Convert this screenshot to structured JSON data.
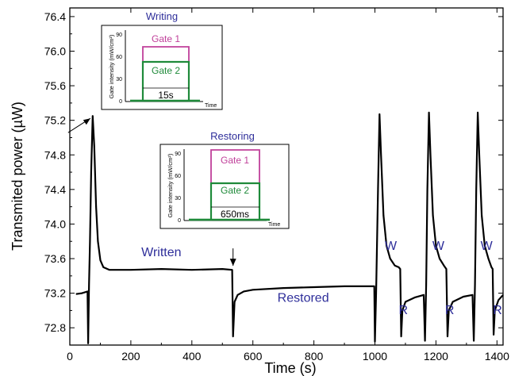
{
  "chart_data": {
    "type": "line",
    "xlabel": "Time (s)",
    "ylabel": "Transmited power (µW)",
    "xlim": [
      0,
      1420
    ],
    "ylim": [
      72.6,
      76.5
    ],
    "x_ticks": [
      "0",
      "200",
      "400",
      "600",
      "800",
      "1000",
      "1200",
      "1400"
    ],
    "y_ticks": [
      "72.8",
      "73.2",
      "73.6",
      "74.0",
      "74.4",
      "74.8",
      "75.2",
      "75.6",
      "76.0",
      "76.4"
    ],
    "series": [
      {
        "color": "#000000",
        "points": [
          [
            20,
            73.19
          ],
          [
            40,
            73.2
          ],
          [
            58,
            73.22
          ],
          [
            60,
            72.62
          ],
          [
            63,
            73.3
          ],
          [
            66,
            73.8
          ],
          [
            70,
            74.6
          ],
          [
            75,
            75.25
          ],
          [
            80,
            74.9
          ],
          [
            86,
            74.2
          ],
          [
            92,
            73.8
          ],
          [
            100,
            73.58
          ],
          [
            110,
            73.5
          ],
          [
            130,
            73.47
          ],
          [
            200,
            73.47
          ],
          [
            300,
            73.48
          ],
          [
            400,
            73.47
          ],
          [
            500,
            73.48
          ],
          [
            532,
            73.47
          ],
          [
            535,
            72.7
          ],
          [
            540,
            73.1
          ],
          [
            550,
            73.18
          ],
          [
            570,
            73.22
          ],
          [
            600,
            73.24
          ],
          [
            700,
            73.26
          ],
          [
            800,
            73.27
          ],
          [
            900,
            73.28
          ],
          [
            998,
            73.28
          ],
          [
            1000,
            72.64
          ],
          [
            1004,
            73.2
          ],
          [
            1010,
            74.4
          ],
          [
            1015,
            75.27
          ],
          [
            1020,
            74.8
          ],
          [
            1028,
            74.1
          ],
          [
            1038,
            73.75
          ],
          [
            1050,
            73.6
          ],
          [
            1065,
            73.52
          ],
          [
            1078,
            73.5
          ],
          [
            1083,
            73.48
          ],
          [
            1086,
            72.7
          ],
          [
            1090,
            73.0
          ],
          [
            1100,
            73.1
          ],
          [
            1130,
            73.15
          ],
          [
            1160,
            73.18
          ],
          [
            1164,
            72.65
          ],
          [
            1168,
            73.3
          ],
          [
            1172,
            74.4
          ],
          [
            1177,
            75.29
          ],
          [
            1182,
            74.8
          ],
          [
            1190,
            74.1
          ],
          [
            1200,
            73.75
          ],
          [
            1212,
            73.6
          ],
          [
            1226,
            73.52
          ],
          [
            1234,
            73.48
          ],
          [
            1238,
            72.7
          ],
          [
            1242,
            73.0
          ],
          [
            1255,
            73.1
          ],
          [
            1290,
            73.16
          ],
          [
            1320,
            73.18
          ],
          [
            1324,
            72.65
          ],
          [
            1328,
            73.3
          ],
          [
            1332,
            74.4
          ],
          [
            1337,
            75.29
          ],
          [
            1342,
            74.8
          ],
          [
            1350,
            74.1
          ],
          [
            1360,
            73.75
          ],
          [
            1372,
            73.6
          ],
          [
            1382,
            73.5
          ],
          [
            1386,
            73.48
          ],
          [
            1389,
            72.72
          ],
          [
            1393,
            73.0
          ],
          [
            1405,
            73.12
          ],
          [
            1420,
            73.18
          ]
        ]
      }
    ],
    "annotations": [
      {
        "text": "Written",
        "x": 300,
        "y": 73.63
      },
      {
        "text": "Restored",
        "x": 765,
        "y": 73.1
      },
      {
        "text": "W",
        "x": 1052,
        "y": 73.7
      },
      {
        "text": "R",
        "x": 1093,
        "y": 72.96
      },
      {
        "text": "W",
        "x": 1208,
        "y": 73.7
      },
      {
        "text": "R",
        "x": 1245,
        "y": 72.96
      },
      {
        "text": "W",
        "x": 1366,
        "y": 73.7
      },
      {
        "text": "R",
        "x": 1402,
        "y": 72.96
      }
    ],
    "arrows": [
      {
        "x": 75,
        "y": 75.25
      },
      {
        "x": 535,
        "y": 73.48
      }
    ],
    "insets": [
      {
        "title": "Writing",
        "ylabel": "Gate intensity (mW/cm²)",
        "xlabel": "Time",
        "y_ticks": [
          "0",
          "30",
          "60",
          "90"
        ],
        "gate1_label": "Gate 1",
        "gate2_label": "Gate 2",
        "gate1_level": 70,
        "gate2_level": 58,
        "duration": "15s"
      },
      {
        "title": "Restoring",
        "ylabel": "Gate intensity (mW/cm²)",
        "xlabel": "Time",
        "y_ticks": [
          "0",
          "30",
          "60",
          "90"
        ],
        "gate1_label": "Gate 1",
        "gate2_label": "Gate 2",
        "gate1_level": 85,
        "gate2_level": 48,
        "duration": "650ms"
      }
    ]
  }
}
